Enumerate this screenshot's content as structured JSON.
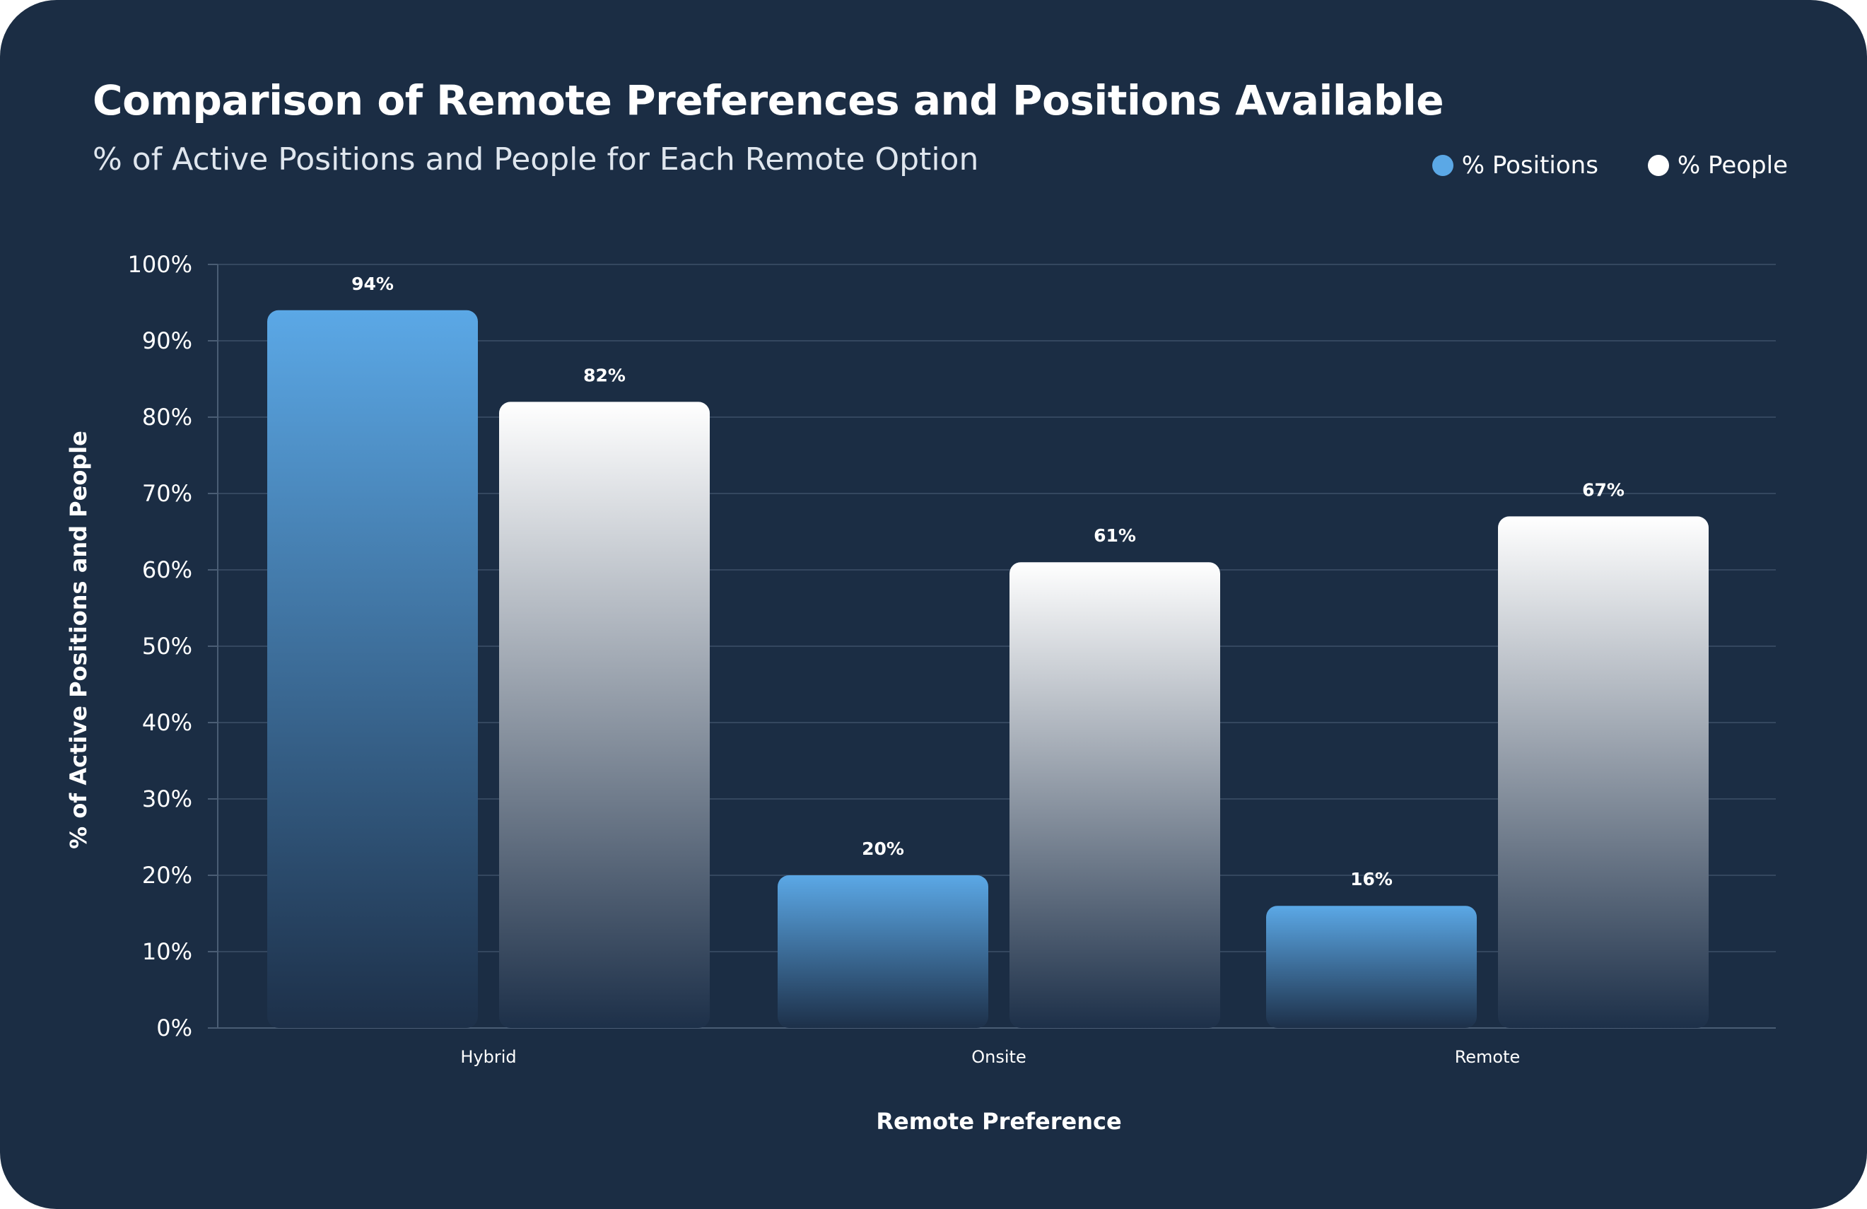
{
  "chart_data": {
    "type": "bar",
    "title": "Comparison of Remote Preferences and Positions Available",
    "subtitle": "% of Active Positions and People for Each Remote Option",
    "xlabel": "Remote Preference",
    "ylabel": "% of Active Positions and People",
    "categories": [
      "Hybrid",
      "Onsite",
      "Remote"
    ],
    "series": [
      {
        "name": "% Positions",
        "values": [
          94,
          20,
          16
        ],
        "labels": [
          "94%",
          "20%",
          "16%"
        ],
        "color": "#5ba8e6"
      },
      {
        "name": "% People",
        "values": [
          82,
          61,
          67
        ],
        "labels": [
          "82%",
          "61%",
          "67%"
        ],
        "color": "#ffffff"
      }
    ],
    "ylim": [
      0,
      100
    ],
    "yticks": [
      0,
      10,
      20,
      30,
      40,
      50,
      60,
      70,
      80,
      90,
      100
    ],
    "ytick_labels": [
      "0%",
      "10%",
      "20%",
      "30%",
      "40%",
      "50%",
      "60%",
      "70%",
      "80%",
      "90%",
      "100%"
    ],
    "grid": true,
    "legend_position": "top-right"
  },
  "colors": {
    "background": "#1b2d44",
    "gridline": "#34475f",
    "positions": "#5ba8e6",
    "people": "#ffffff"
  }
}
